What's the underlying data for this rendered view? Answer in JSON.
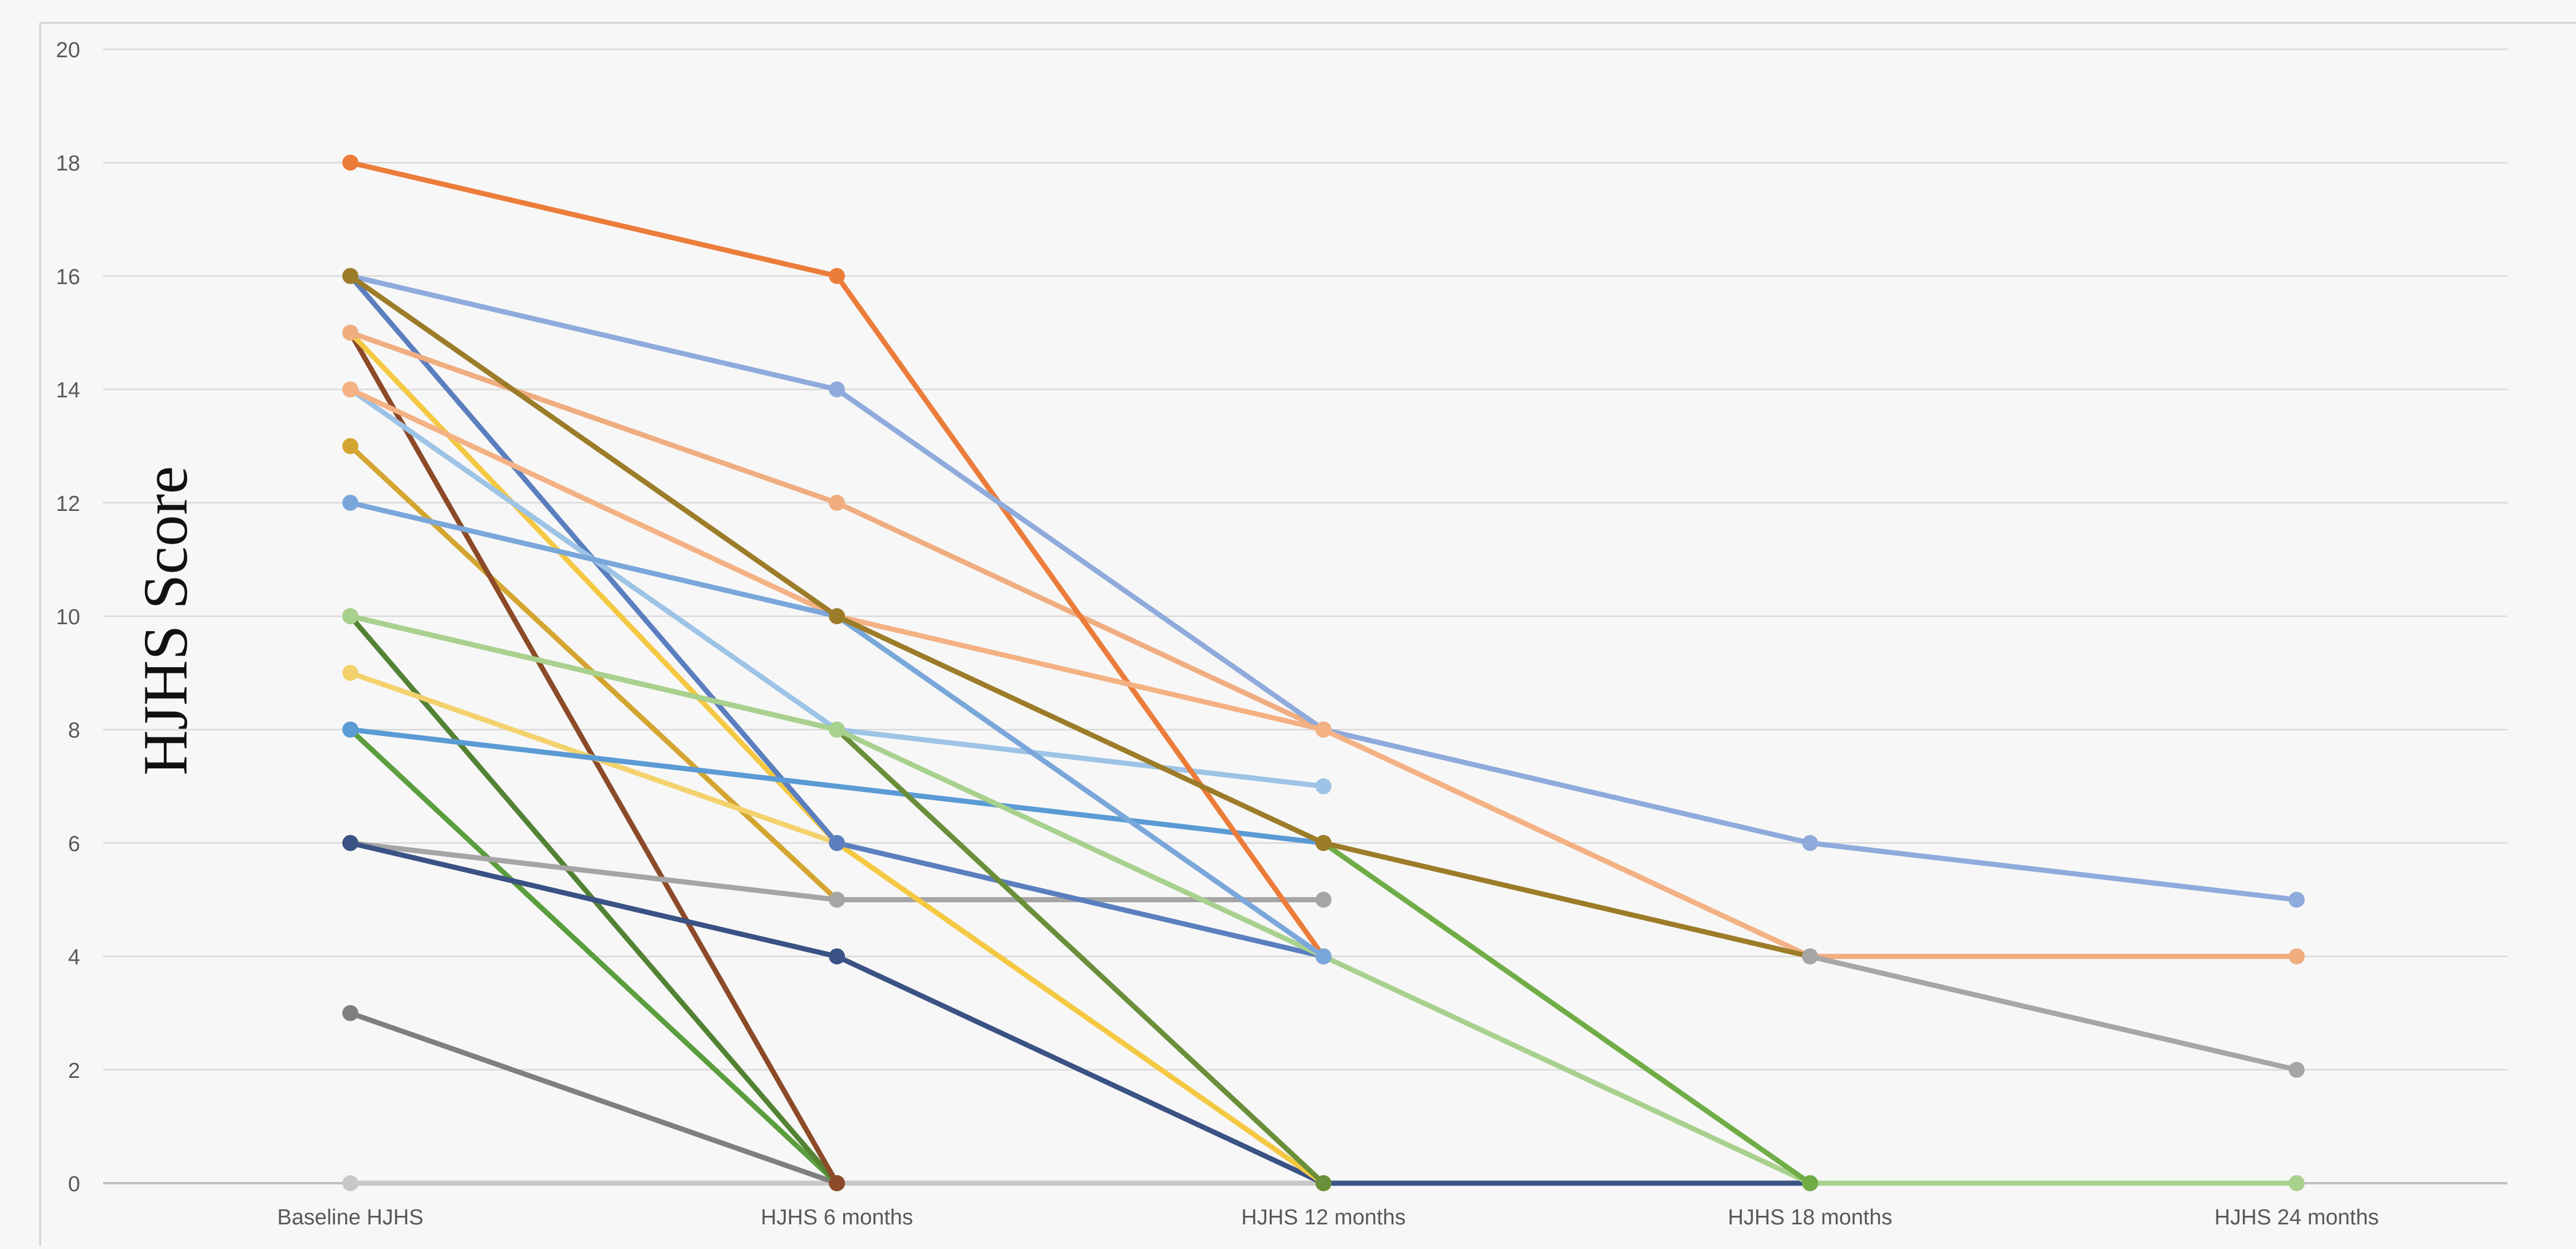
{
  "chart_data": {
    "type": "line",
    "title": "",
    "ylabel": "HJHS Score",
    "xlabel": "",
    "categories": [
      "Baseline HJHS",
      "HJHS 6 months",
      "HJHS 12 months",
      "HJHS 18 months",
      "HJHS 24 months"
    ],
    "ylim": [
      0,
      20
    ],
    "yticks": [
      0,
      2,
      4,
      6,
      8,
      10,
      12,
      14,
      16,
      18,
      20
    ],
    "grid": true,
    "legend": "none",
    "series": [
      {
        "color": "#c8c8c8",
        "values": [
          0,
          0,
          0,
          0,
          0
        ]
      },
      {
        "color": "#7f7f7f",
        "values": [
          3,
          0,
          null,
          null,
          null
        ]
      },
      {
        "color": "#5a9e3e",
        "values": [
          8,
          0,
          null,
          null,
          null
        ]
      },
      {
        "color": "#548235",
        "values": [
          10,
          0,
          null,
          null,
          null
        ]
      },
      {
        "color": "#d4a530",
        "values": [
          13,
          5,
          null,
          null,
          null
        ]
      },
      {
        "color": "#8c4a28",
        "values": [
          15,
          0,
          null,
          null,
          null
        ]
      },
      {
        "color": "#a5a5a5",
        "values": [
          6,
          5,
          5,
          null,
          null
        ]
      },
      {
        "color": "#3a5284",
        "values": [
          6,
          4,
          0,
          0,
          null
        ]
      },
      {
        "color": "#f3d26e",
        "values": [
          9,
          6,
          0,
          null,
          null
        ]
      },
      {
        "color": "#f5c842",
        "values": [
          15,
          6,
          0,
          null,
          null
        ]
      },
      {
        "color": "#5b7fbe",
        "values": [
          16,
          6,
          4,
          null,
          null
        ]
      },
      {
        "color": "#5b9bd5",
        "values": [
          8,
          null,
          6,
          null,
          null
        ]
      },
      {
        "color": "#9dc3e6",
        "values": [
          14,
          8,
          7,
          null,
          null
        ]
      },
      {
        "color": "#f0ad80",
        "values": [
          15,
          12,
          8,
          4,
          4
        ]
      },
      {
        "color": "#ec7c3a",
        "values": [
          18,
          16,
          4,
          null,
          null
        ]
      },
      {
        "color": "#8fabdc",
        "values": [
          16,
          14,
          8,
          6,
          5
        ]
      },
      {
        "color": "#6a8f3a",
        "values": [
          10,
          8,
          0,
          null,
          null
        ]
      },
      {
        "color": "#a9d18e",
        "values": [
          10,
          8,
          4,
          0,
          0
        ]
      },
      {
        "color": "#f4b183",
        "values": [
          14,
          10,
          8,
          4,
          null
        ]
      },
      {
        "color": "#7aa7da",
        "values": [
          12,
          10,
          4,
          null,
          null
        ]
      },
      {
        "color": "#70ad47",
        "values": [
          null,
          null,
          6,
          0,
          null
        ]
      },
      {
        "color": "#9c7c28",
        "values": [
          16,
          10,
          6,
          4,
          null
        ]
      },
      {
        "color": "#a6a6a6",
        "values": [
          null,
          null,
          null,
          4,
          2
        ]
      }
    ]
  }
}
